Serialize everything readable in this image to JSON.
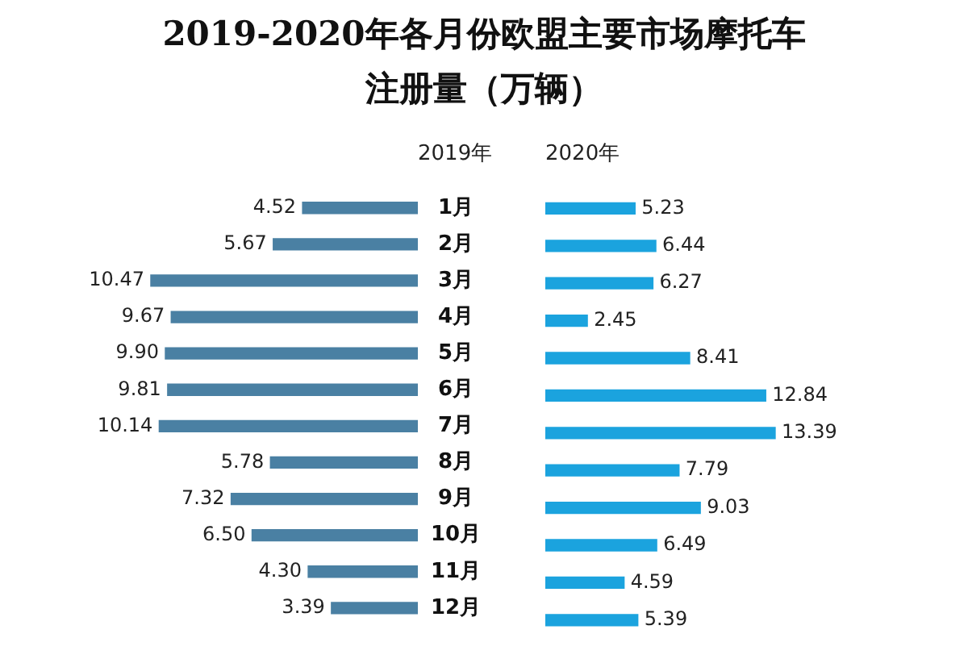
{
  "chart_data": [
    {
      "type": "bar",
      "title": "2019-2020年各月份欧盟主要市场摩托车注册量（万辆）",
      "xlabel": "2019年",
      "orientation": "horizontal",
      "tick_labels": "y",
      "categories": [
        "1月",
        "2月",
        "3月",
        "4月",
        "5月",
        "6月",
        "7月",
        "8月",
        "9月",
        "10月",
        "11月",
        "12月"
      ],
      "series": [
        {
          "color": "#4a80a3",
          "values": [
            4.52,
            5.67,
            10.47,
            9.67,
            9.9,
            9.81,
            10.14,
            5.78,
            7.32,
            6.5,
            4.3,
            3.39
          ],
          "value_labels": [
            "4.52",
            "5.67",
            "10.47",
            "9.67",
            "9.90",
            "9.81",
            "10.14",
            "5.78",
            "7.32",
            "6.50",
            "4.30",
            "3.39"
          ]
        }
      ]
    },
    {
      "type": "bar",
      "xlabel": "2020年",
      "orientation": "horizontal",
      "tick_labels": false,
      "categories": [
        null,
        null,
        null,
        null,
        null,
        null,
        null,
        null,
        null,
        null,
        null,
        null
      ],
      "series": [
        {
          "color": "#1ba3de",
          "values": [
            5.23,
            6.44,
            6.27,
            2.45,
            8.41,
            12.84,
            13.39,
            7.79,
            9.03,
            6.49,
            4.59,
            5.39
          ],
          "value_labels": [
            "5.23",
            "6.44",
            "6.27",
            "2.45",
            "8.41",
            "12.84",
            "13.39",
            "7.79",
            "9.03",
            "6.49",
            "4.59",
            "5.39"
          ]
        }
      ]
    }
  ]
}
